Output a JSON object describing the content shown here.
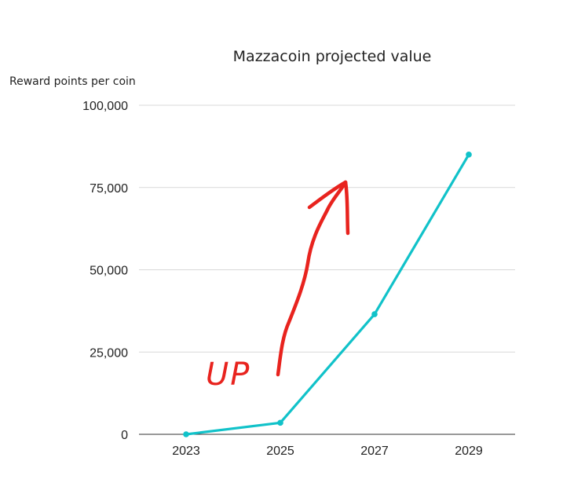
{
  "chart_data": {
    "type": "line",
    "title": "Mazzacoin  projected value",
    "xlabel": "",
    "ylabel": "Reward points per coin",
    "x": [
      "2023",
      "2025",
      "2027",
      "2029"
    ],
    "series": [
      {
        "values": [
          0,
          3500,
          36500,
          85000
        ]
      }
    ],
    "ylim": [
      0,
      100000
    ],
    "yticks": [
      "0",
      "25,000",
      "50,000",
      "75,000",
      "100,000"
    ],
    "ytick_values": [
      0,
      25000,
      50000,
      75000,
      100000
    ],
    "grid": true,
    "legend": "none",
    "annotation": "UP",
    "colors": {
      "line": "#11c2c9",
      "annotation": "#e8231e"
    }
  }
}
